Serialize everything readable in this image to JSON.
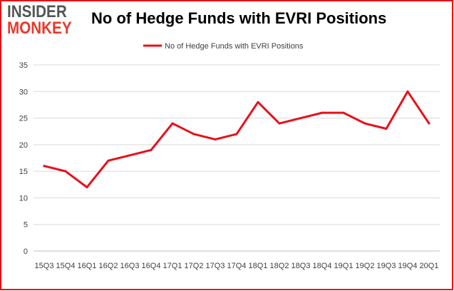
{
  "logo": {
    "top": "INSIDER",
    "bottom": "MONKEY"
  },
  "chart_data": {
    "type": "line",
    "title": "No of Hedge Funds with EVRI Positions",
    "categories": [
      "15Q3",
      "15Q4",
      "16Q1",
      "16Q2",
      "16Q3",
      "16Q4",
      "17Q1",
      "17Q2",
      "17Q3",
      "17Q4",
      "18Q1",
      "18Q2",
      "18Q3",
      "18Q4",
      "19Q1",
      "19Q2",
      "19Q3",
      "19Q4",
      "20Q1"
    ],
    "series": [
      {
        "name": "No of Hedge Funds with EVRI Positions",
        "values": [
          16,
          15,
          12,
          17,
          18,
          19,
          24,
          22,
          21,
          22,
          28,
          24,
          25,
          26,
          26,
          24,
          23,
          30,
          24
        ]
      }
    ],
    "ylim": [
      0,
      35
    ],
    "yticks": [
      0,
      5,
      10,
      15,
      20,
      25,
      30,
      35
    ],
    "grid": true,
    "legend": "top-center",
    "colors": {
      "series": "#e8101a",
      "grid": "#d9d9d9",
      "frame_border": "#e8101a"
    }
  }
}
